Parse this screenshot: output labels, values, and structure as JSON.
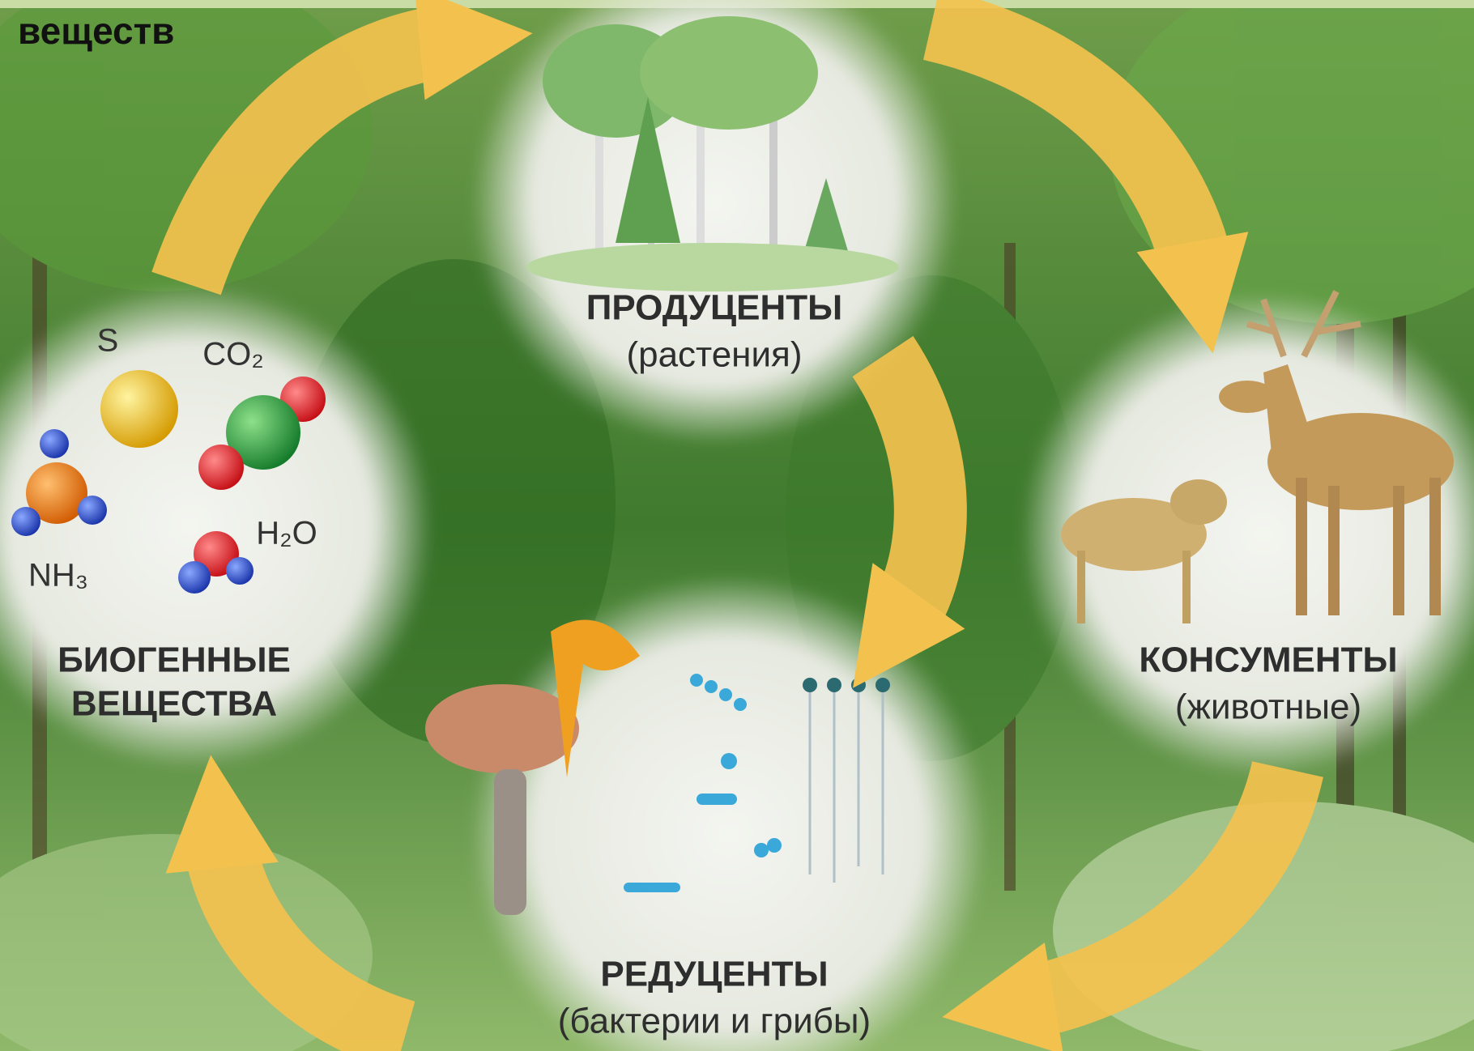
{
  "header": {
    "title": "веществ"
  },
  "nodes": [
    {
      "label": "ПРОДУЦЕНТЫ",
      "sublabel": "(растения)"
    },
    {
      "label": "КОНСУМЕНТЫ",
      "sublabel": "(животные)"
    },
    {
      "label": "РЕДУЦЕНТЫ",
      "sublabel": "(бактерии и грибы)"
    },
    {
      "label": "БИОГЕННЫЕ",
      "sublabel": "ВЕЩЕСТВА"
    }
  ],
  "molecules": [
    "S",
    "CO₂",
    "H₂O",
    "NH₃"
  ]
}
